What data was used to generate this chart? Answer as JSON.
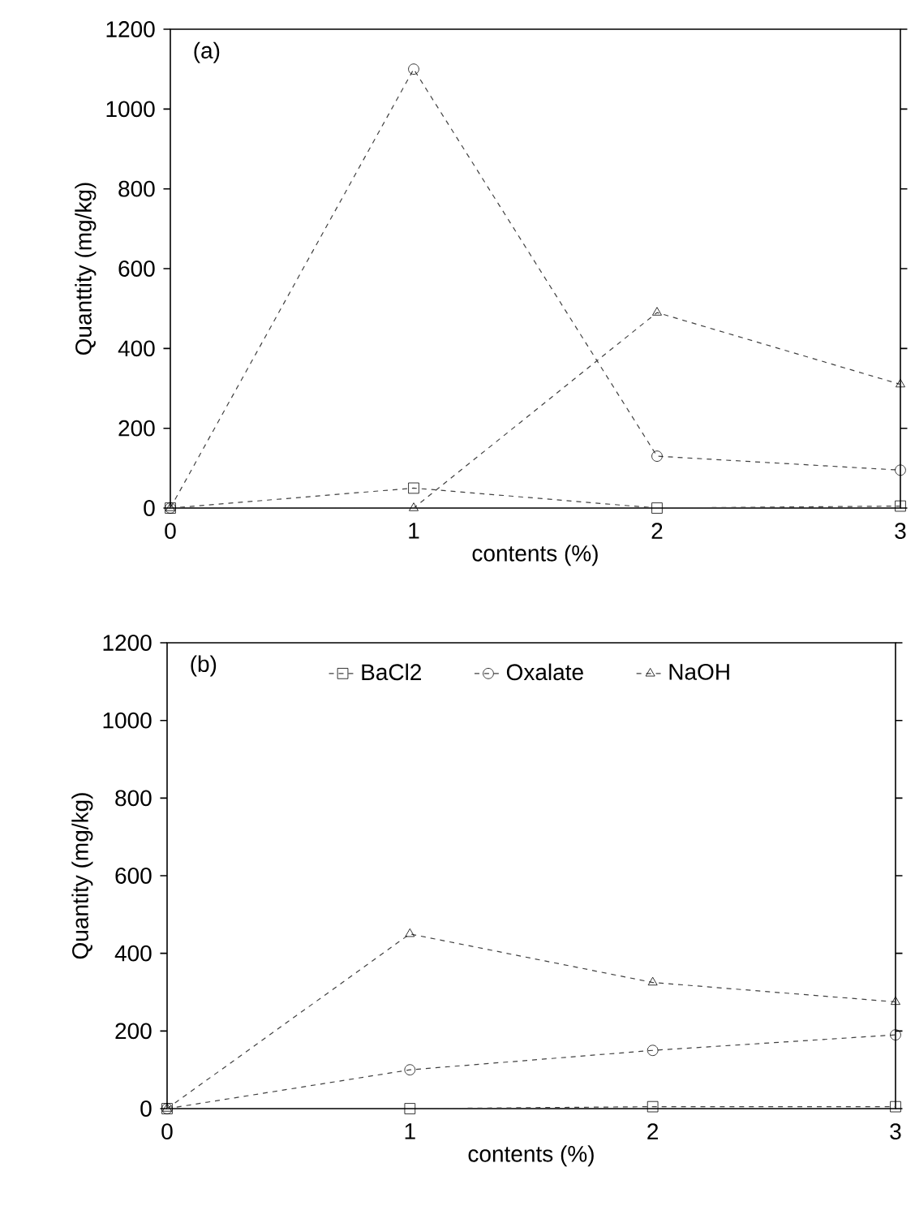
{
  "chart_data": [
    {
      "type": "line",
      "annotations": [
        "(a)"
      ],
      "xlabel": "contents (%)",
      "ylabel": "Quanttity (mg/kg)",
      "x": [
        0,
        1,
        2,
        3
      ],
      "xlim": [
        0,
        3
      ],
      "xticks": [
        0,
        1,
        2,
        3
      ],
      "ylim": [
        0,
        1200
      ],
      "yticks": [
        0,
        200,
        400,
        600,
        800,
        1000,
        1200
      ],
      "line_style": "dashed",
      "legend": false,
      "series": [
        {
          "color": "#404040",
          "marker": "square",
          "values": [
            0,
            50,
            0,
            5
          ]
        },
        {
          "color": "#404040",
          "marker": "circle",
          "values": [
            0,
            1100,
            130,
            95
          ]
        },
        {
          "color": "#404040",
          "marker": "triangle",
          "values": [
            0,
            0,
            490,
            310
          ]
        }
      ]
    },
    {
      "type": "line",
      "annotations": [
        "(b)"
      ],
      "xlabel": "contents (%)",
      "ylabel": "Quantity (mg/kg)",
      "x": [
        0,
        1,
        2,
        3
      ],
      "xlim": [
        0,
        3
      ],
      "xticks": [
        0,
        1,
        2,
        3
      ],
      "ylim": [
        0,
        1200
      ],
      "yticks": [
        0,
        200,
        400,
        600,
        800,
        1000,
        1200
      ],
      "line_style": "dashed",
      "legend": "top",
      "series": [
        {
          "name": "BaCl2",
          "color": "#404040",
          "marker": "square",
          "values": [
            0,
            0,
            5,
            5
          ]
        },
        {
          "name": "Oxalate",
          "color": "#404040",
          "marker": "circle",
          "values": [
            0,
            100,
            150,
            190
          ]
        },
        {
          "name": "NaOH",
          "color": "#404040",
          "marker": "triangle",
          "values": [
            0,
            450,
            325,
            275
          ]
        }
      ]
    }
  ]
}
